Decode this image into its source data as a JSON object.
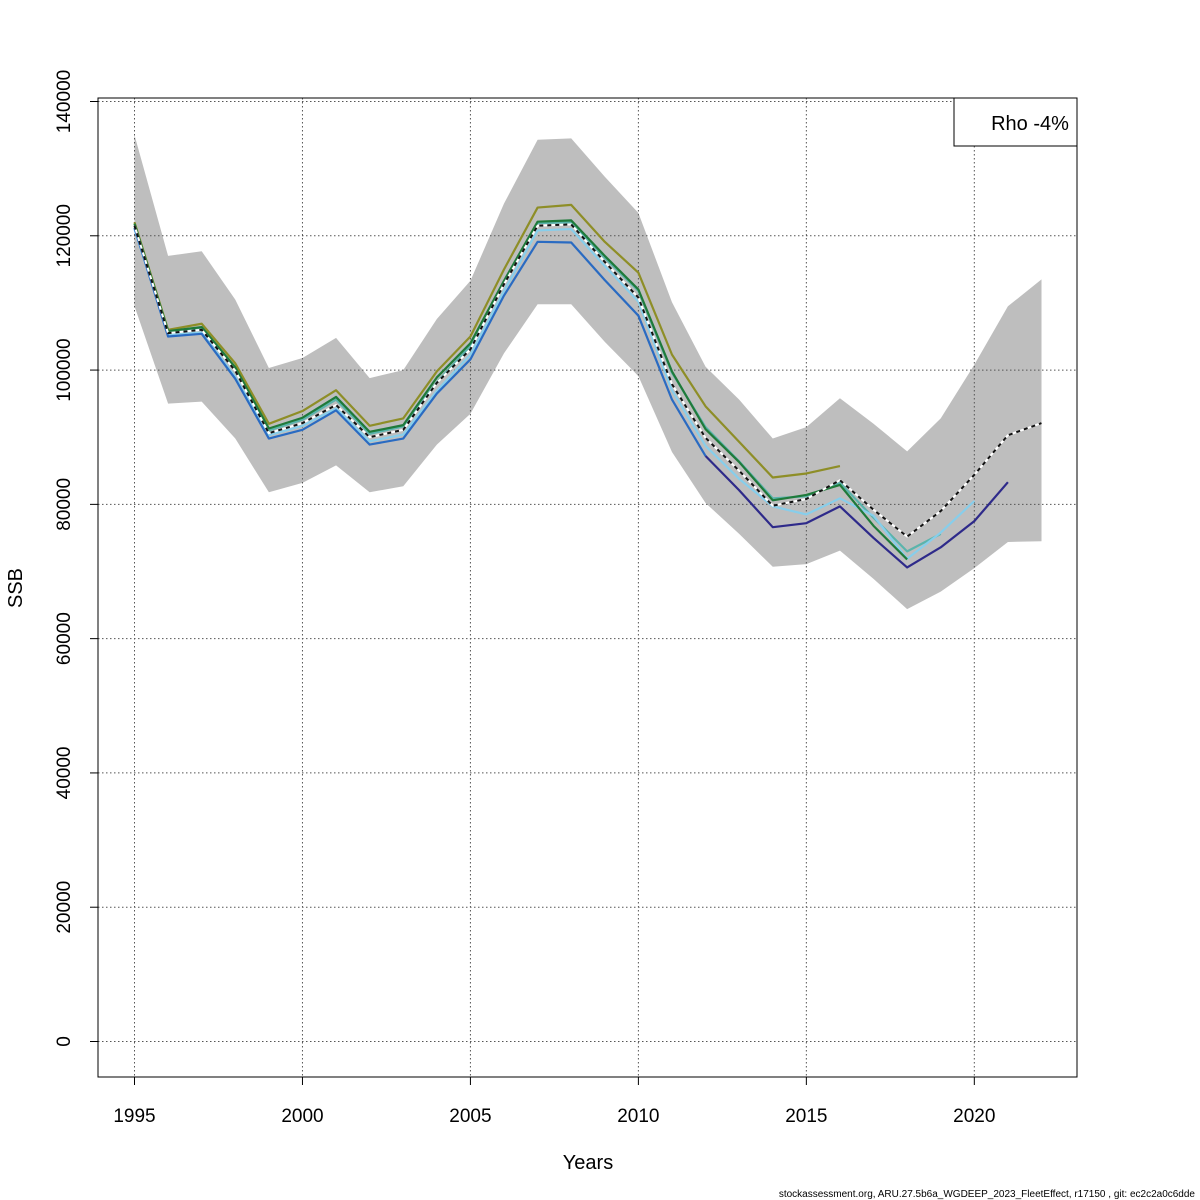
{
  "chart_data": {
    "type": "line",
    "title": "",
    "xlabel": "Years",
    "ylabel": "SSB",
    "xlim": [
      1994,
      2023
    ],
    "ylim": [
      -5000,
      140000
    ],
    "x_ticks": [
      "1995",
      "2000",
      "2005",
      "2010",
      "2015",
      "2020"
    ],
    "x_tick_values": [
      1995,
      2000,
      2005,
      2010,
      2015,
      2020
    ],
    "y_ticks": [
      "0",
      "20000",
      "40000",
      "60000",
      "80000",
      "100000",
      "120000",
      "140000"
    ],
    "y_tick_values": [
      0,
      20000,
      40000,
      60000,
      80000,
      100000,
      120000,
      140000
    ],
    "grid": true,
    "legend": {
      "text": "Rho -4%",
      "placement": "top-right"
    },
    "confidence_band": {
      "color": "#bebebe",
      "x": [
        1995,
        1996,
        1997,
        1998,
        1999,
        2000,
        2001,
        2002,
        2003,
        2004,
        2005,
        2006,
        2007,
        2008,
        2009,
        2010,
        2011,
        2012,
        2013,
        2014,
        2015,
        2016,
        2017,
        2018,
        2019,
        2020,
        2021,
        2022
      ],
      "upper": [
        135000,
        117000,
        117700,
        110500,
        100300,
        101800,
        104800,
        98800,
        100000,
        107600,
        113300,
        124800,
        134300,
        134500,
        128800,
        123400,
        110100,
        100500,
        95600,
        89800,
        91500,
        95800,
        92000,
        87900,
        92800,
        100800,
        109500,
        113500
      ],
      "lower": [
        109500,
        95000,
        95300,
        89800,
        81800,
        83200,
        85800,
        81800,
        82700,
        88900,
        93500,
        102500,
        109800,
        109800,
        104200,
        99100,
        87800,
        80200,
        75600,
        70700,
        71100,
        73100,
        68900,
        64400,
        67000,
        70500,
        74400,
        74500
      ]
    },
    "series": [
      {
        "color": "#8e8e27",
        "dashed": false,
        "x": [
          1995,
          1996,
          1997,
          1998,
          1999,
          2000,
          2001,
          2002,
          2003,
          2004,
          2005,
          2006,
          2007,
          2008,
          2009,
          2010,
          2011,
          2012,
          2013,
          2014,
          2015,
          2016
        ],
        "values": [
          122000,
          106000,
          106900,
          101000,
          92000,
          93900,
          97000,
          91700,
          92800,
          99800,
          105000,
          115000,
          124200,
          124600,
          119100,
          114500,
          102300,
          94600,
          89300,
          84000,
          84600,
          85700
        ]
      },
      {
        "color": "#5ab4ac",
        "dashed": false,
        "x": [
          1995,
          1996,
          1997,
          1998,
          1999,
          2000,
          2001,
          2002,
          2003,
          2004,
          2005,
          2006,
          2007,
          2008,
          2009,
          2010,
          2011,
          2012,
          2013,
          2014,
          2015,
          2016,
          2017,
          2018,
          2019
        ],
        "values": [
          121500,
          105700,
          106200,
          100200,
          91000,
          92600,
          95600,
          90500,
          91600,
          98200,
          103600,
          113100,
          121900,
          122000,
          116700,
          111800,
          99600,
          91500,
          86400,
          80900,
          81200,
          83200,
          78000,
          73000,
          75600
        ]
      },
      {
        "color": "#87ceeb",
        "dashed": false,
        "x": [
          1995,
          1996,
          1997,
          1998,
          1999,
          2000,
          2001,
          2002,
          2003,
          2004,
          2005,
          2006,
          2007,
          2008,
          2009,
          2010,
          2011,
          2012,
          2013,
          2014,
          2015,
          2016,
          2017,
          2018,
          2019,
          2020
        ],
        "values": [
          121000,
          105200,
          105600,
          99000,
          90300,
          91700,
          94300,
          89400,
          90400,
          96900,
          102300,
          111800,
          120800,
          121000,
          115500,
          110200,
          97000,
          88700,
          83800,
          79700,
          78500,
          80900,
          78300,
          71900,
          75800,
          80500
        ]
      },
      {
        "color": "#2a6bc2",
        "dashed": false,
        "x": [
          1995,
          1996,
          1997,
          1998,
          1999,
          2000,
          2001,
          2002,
          2003,
          2004,
          2005,
          2006,
          2007,
          2008,
          2009,
          2010,
          2011,
          2012
        ],
        "values": [
          121200,
          105000,
          105400,
          98700,
          89800,
          91100,
          94000,
          88900,
          89800,
          96500,
          101600,
          111100,
          119100,
          119000,
          113400,
          108100,
          95600,
          87200
        ]
      },
      {
        "color": "#2e2a8a",
        "dashed": false,
        "x": [
          2012,
          2013,
          2014,
          2015,
          2016,
          2017,
          2018,
          2019,
          2020,
          2021
        ],
        "values": [
          87200,
          82100,
          76600,
          77200,
          79700,
          75000,
          70600,
          73600,
          77500,
          83300
        ]
      },
      {
        "color": "#1f7a3a",
        "dashed": false,
        "x": [
          1995,
          1996,
          1997,
          1998,
          1999,
          2000,
          2001,
          2002,
          2003,
          2004,
          2005,
          2006,
          2007,
          2008,
          2009,
          2010,
          2011,
          2012,
          2013,
          2014,
          2015,
          2016,
          2017,
          2018
        ],
        "values": [
          121800,
          105800,
          106400,
          100400,
          91300,
          92900,
          96000,
          90800,
          91800,
          98900,
          104000,
          113300,
          122100,
          122300,
          117000,
          112000,
          99800,
          91200,
          86300,
          80600,
          81400,
          82900,
          76800,
          71800
        ]
      },
      {
        "color": "#111111",
        "dashed": true,
        "x": [
          1995,
          1996,
          1997,
          1998,
          1999,
          2000,
          2001,
          2002,
          2003,
          2004,
          2005,
          2006,
          2007,
          2008,
          2009,
          2010,
          2011,
          2012,
          2013,
          2014,
          2015,
          2016,
          2017,
          2018,
          2019,
          2020,
          2021,
          2022
        ],
        "values": [
          121500,
          105500,
          106000,
          99900,
          90600,
          92100,
          94800,
          90000,
          91100,
          98100,
          103100,
          112800,
          121500,
          121700,
          116100,
          110800,
          97900,
          89900,
          85000,
          79800,
          80800,
          83600,
          79200,
          75200,
          79000,
          84400,
          90300,
          92100
        ]
      }
    ]
  },
  "footer": "stockassessment.org, ARU.27.5b6a_WGDEEP_2023_FleetEffect, r17150 , git: ec2c2a0c6dde"
}
